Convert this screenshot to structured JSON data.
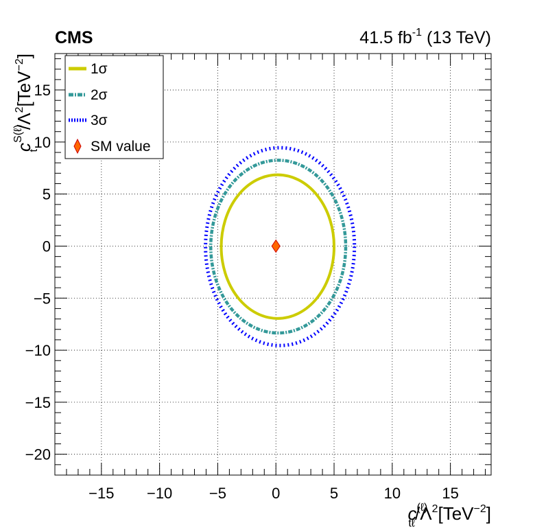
{
  "header": {
    "experiment": "CMS",
    "lumi": "41.5",
    "lumi_unit_base": "fb",
    "lumi_unit_exp": "-1",
    "energy": "(13 TeV)"
  },
  "axes": {
    "x_title": {
      "sym": "c",
      "sup": "(ℓ)",
      "sub": "tℓ",
      "rest": "/Λ",
      "exp2": "2",
      "unit": "[TeV",
      "unit_exp": "−2",
      "close": "]"
    },
    "y_title": {
      "sym": "c",
      "sup": "S(ℓ)",
      "sub": "t",
      "rest": "/Λ",
      "exp2": "2",
      "unit": "[TeV",
      "unit_exp": "−2",
      "close": "]"
    }
  },
  "legend": {
    "items": [
      {
        "label": "1σ",
        "style": "solid"
      },
      {
        "label": "2σ",
        "style": "dashdot"
      },
      {
        "label": "3σ",
        "style": "dotted"
      },
      {
        "label": "SM value",
        "style": "marker"
      }
    ]
  },
  "chart_data": {
    "type": "contour",
    "xlim": [
      -19,
      18.5
    ],
    "ylim": [
      -22,
      18.5
    ],
    "x_ticks": [
      -15,
      -10,
      -5,
      0,
      5,
      10,
      15
    ],
    "y_ticks": [
      -20,
      -15,
      -10,
      -5,
      0,
      5,
      10,
      15
    ],
    "x_tick_labels": [
      "−15",
      "−10",
      "−5",
      "0",
      "5",
      "10",
      "15"
    ],
    "y_tick_labels": [
      "−20",
      "−15",
      "−10",
      "−5",
      "0",
      "5",
      "10",
      "15"
    ],
    "grid": true,
    "legend_position": "top-left",
    "series": [
      {
        "name": "1σ",
        "color": "#cccc00",
        "center": [
          0.15,
          -0.05
        ],
        "rx": 4.85,
        "ry": 6.9,
        "style": "solid"
      },
      {
        "name": "2σ",
        "color": "#339999",
        "center": [
          0.2,
          -0.05
        ],
        "rx": 5.8,
        "ry": 8.3,
        "style": "dashdot"
      },
      {
        "name": "3σ",
        "color": "#0000ff",
        "center": [
          0.35,
          -0.05
        ],
        "rx": 6.4,
        "ry": 9.5,
        "style": "dotted"
      }
    ],
    "sm_point": {
      "name": "SM value",
      "x": 0,
      "y": 0,
      "fill": "#ff6600",
      "stroke": "#cc0000"
    }
  }
}
